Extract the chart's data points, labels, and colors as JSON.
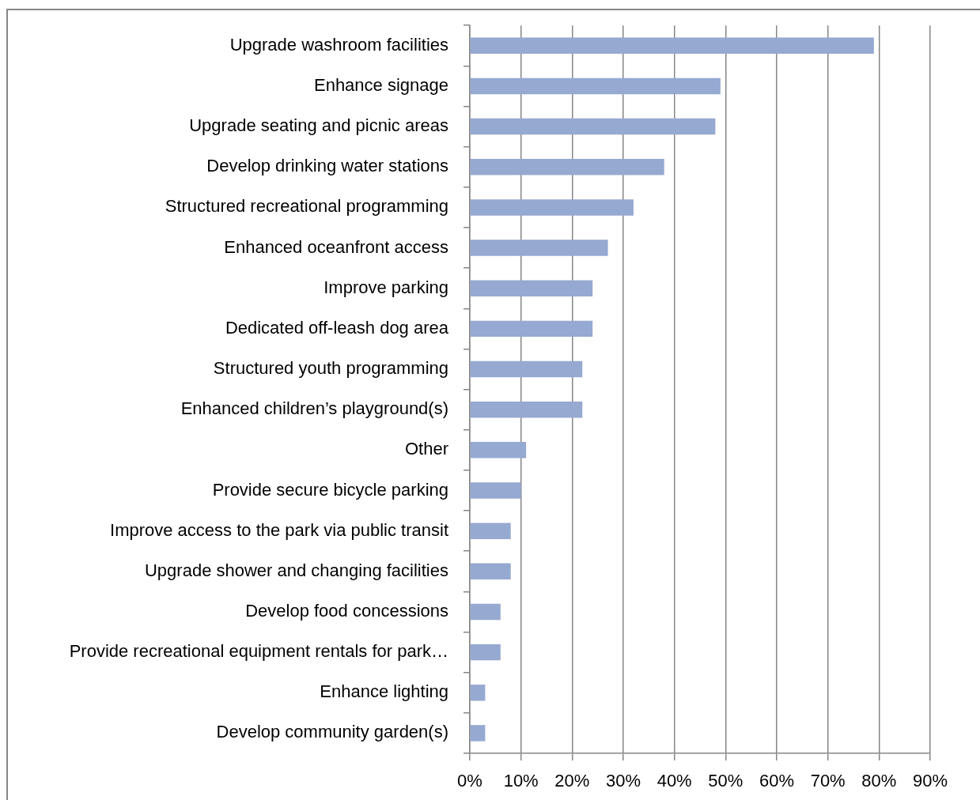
{
  "chart_data": {
    "type": "bar",
    "orientation": "horizontal",
    "categories": [
      "Upgrade washroom facilities",
      "Enhance signage",
      "Upgrade seating and picnic areas",
      "Develop drinking water stations",
      "Structured recreational programming",
      "Enhanced oceanfront access",
      "Improve parking",
      "Dedicated off-leash dog area",
      "Structured youth programming",
      "Enhanced children’s playground(s)",
      "Other",
      "Provide secure bicycle parking",
      "Improve access to the park via public transit",
      "Upgrade shower and changing facilities",
      "Develop food concessions",
      "Provide recreational equipment rentals for park…",
      "Enhance lighting",
      "Develop community garden(s)"
    ],
    "values": [
      79,
      49,
      48,
      38,
      32,
      27,
      24,
      24,
      22,
      22,
      11,
      10,
      8,
      8,
      6,
      6,
      3,
      3
    ],
    "color": "#95a9d1",
    "xlim": [
      0,
      90
    ],
    "xticks": [
      {
        "value": 0,
        "label": "0%"
      },
      {
        "value": 10,
        "label": "10%"
      },
      {
        "value": 20,
        "label": "20%"
      },
      {
        "value": 30,
        "label": "30%"
      },
      {
        "value": 40,
        "label": "40%"
      },
      {
        "value": 50,
        "label": "50%"
      },
      {
        "value": 60,
        "label": "60%"
      },
      {
        "value": 70,
        "label": "70%"
      },
      {
        "value": 80,
        "label": "80%"
      },
      {
        "value": 90,
        "label": "90%"
      }
    ],
    "grid": "x"
  }
}
